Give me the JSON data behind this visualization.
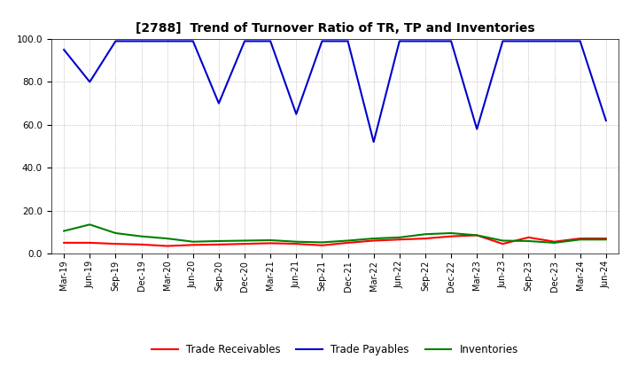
{
  "title": "[2788]  Trend of Turnover Ratio of TR, TP and Inventories",
  "x_labels": [
    "Mar-19",
    "Jun-19",
    "Sep-19",
    "Dec-19",
    "Mar-20",
    "Jun-20",
    "Sep-20",
    "Dec-20",
    "Mar-21",
    "Jun-21",
    "Sep-21",
    "Dec-21",
    "Mar-22",
    "Jun-22",
    "Sep-22",
    "Dec-22",
    "Mar-23",
    "Jun-23",
    "Sep-23",
    "Dec-23",
    "Mar-24",
    "Jun-24"
  ],
  "trade_receivables": [
    5.0,
    5.0,
    4.5,
    4.2,
    3.5,
    4.0,
    4.2,
    4.5,
    4.8,
    4.5,
    3.8,
    5.0,
    6.0,
    6.5,
    7.0,
    8.0,
    8.5,
    4.5,
    7.5,
    5.5,
    7.0,
    7.0
  ],
  "trade_payables": [
    95.0,
    80.0,
    99.0,
    99.0,
    99.0,
    99.0,
    70.0,
    99.0,
    99.0,
    65.0,
    99.0,
    99.0,
    52.0,
    99.0,
    99.0,
    99.0,
    58.0,
    99.0,
    99.0,
    99.0,
    99.0,
    62.0
  ],
  "inventories": [
    10.5,
    13.5,
    9.5,
    8.0,
    7.0,
    5.5,
    5.8,
    6.0,
    6.2,
    5.5,
    5.2,
    6.0,
    7.0,
    7.5,
    9.0,
    9.5,
    8.5,
    6.0,
    5.8,
    5.0,
    6.5,
    6.5
  ],
  "ylim": [
    0.0,
    100.0
  ],
  "yticks": [
    0.0,
    20.0,
    40.0,
    60.0,
    80.0,
    100.0
  ],
  "color_tr": "#ff0000",
  "color_tp": "#0000cc",
  "color_inv": "#008000",
  "bg_color": "#ffffff",
  "grid_color": "#999999",
  "legend_labels": [
    "Trade Receivables",
    "Trade Payables",
    "Inventories"
  ],
  "title_fontsize": 10,
  "tick_fontsize": 7,
  "legend_fontsize": 8.5
}
